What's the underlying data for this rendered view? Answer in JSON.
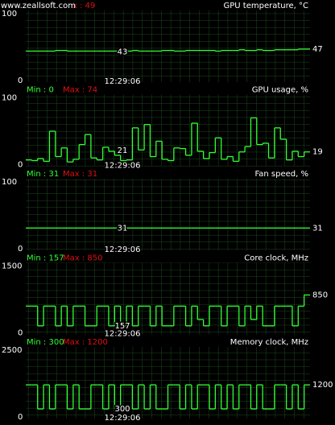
{
  "watermark": "www.zeallsoft.com",
  "panels": [
    {
      "title": "GPU temperature, °C",
      "max_label": "x : 49",
      "ylim": [
        0,
        100
      ],
      "time": "12:29:06",
      "cursor_value": 43,
      "current_value": 47,
      "values": [
        44,
        44,
        44,
        44,
        44,
        45,
        45,
        44,
        44,
        44,
        44,
        44,
        44,
        44,
        44,
        44,
        44,
        44,
        45,
        44,
        44,
        44,
        44,
        45,
        45,
        44,
        44,
        45,
        45,
        45,
        45,
        45,
        44,
        45,
        45,
        45,
        46,
        45,
        45,
        46,
        45,
        45,
        46,
        46,
        46,
        46,
        47,
        47
      ]
    },
    {
      "title": "GPU usage, %",
      "min_label": "Min : 0",
      "max_label": "Max : 74",
      "ylim": [
        0,
        100
      ],
      "time": "12:29:06",
      "cursor_value": 21,
      "current_value": 19,
      "values": [
        7,
        6,
        9,
        5,
        50,
        12,
        25,
        4,
        8,
        30,
        45,
        10,
        7,
        26,
        20,
        14,
        6,
        7,
        55,
        22,
        60,
        12,
        35,
        8,
        6,
        25,
        24,
        14,
        62,
        20,
        9,
        18,
        40,
        8,
        12,
        5,
        19,
        27,
        70,
        30,
        32,
        10,
        55,
        38,
        7,
        20,
        12,
        19
      ]
    },
    {
      "title": "Fan speed, %",
      "min_label": "Min : 31",
      "max_label": "Max : 31",
      "ylim": [
        0,
        100
      ],
      "time": "12:29:06",
      "cursor_value": 31,
      "current_value": 31,
      "values": [
        31,
        31,
        31,
        31,
        31,
        31,
        31,
        31,
        31,
        31,
        31,
        31,
        31,
        31,
        31,
        31,
        31,
        31,
        31,
        31,
        31,
        31,
        31,
        31
      ]
    },
    {
      "title": "Core clock, MHz",
      "min_label": "Min : 157",
      "max_label": "Max : 850",
      "ylim": [
        0,
        1500
      ],
      "time": "12:29:06",
      "cursor_value": 157,
      "current_value": 850,
      "values": [
        600,
        600,
        157,
        600,
        600,
        157,
        600,
        157,
        600,
        600,
        157,
        157,
        600,
        600,
        157,
        600,
        157,
        600,
        157,
        600,
        600,
        157,
        600,
        157,
        157,
        600,
        600,
        157,
        600,
        300,
        157,
        600,
        600,
        157,
        600,
        600,
        157,
        600,
        300,
        600,
        157,
        157,
        600,
        600,
        600,
        157,
        600,
        850
      ]
    },
    {
      "title": "Memory clock, MHz",
      "min_label": "Min : 300",
      "max_label": "Max : 1200",
      "ylim": [
        0,
        2500
      ],
      "time": "12:29:06",
      "cursor_value": 300,
      "current_value": 1200,
      "values": [
        1200,
        1200,
        300,
        1200,
        300,
        1200,
        1200,
        300,
        1200,
        300,
        300,
        1200,
        1200,
        300,
        1200,
        300,
        1200,
        1200,
        300,
        1200,
        300,
        1200,
        300,
        300,
        1200,
        1200,
        300,
        1200,
        300,
        1200,
        1200,
        300,
        1200,
        300,
        1200,
        300,
        1200,
        1200,
        300,
        1200,
        300,
        300,
        1200,
        1200,
        300,
        1200,
        300,
        1200
      ]
    }
  ]
}
